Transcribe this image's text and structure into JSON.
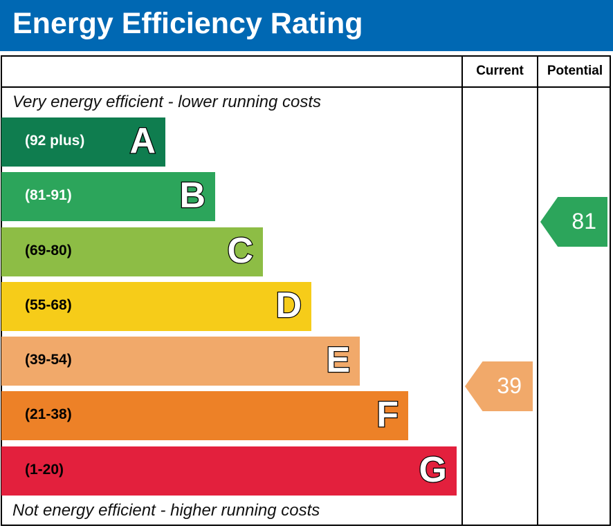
{
  "title": "Energy Efficiency Rating",
  "columns": {
    "current": "Current",
    "potential": "Potential"
  },
  "notes": {
    "top": "Very energy efficient - lower running costs",
    "bottom": "Not energy efficient - higher running costs"
  },
  "chart_data": {
    "type": "bar",
    "bands": [
      {
        "letter": "A",
        "range": "(92 plus)",
        "color": "#0f7d4f",
        "text_color": "#ffffff"
      },
      {
        "letter": "B",
        "range": "(81-91)",
        "color": "#2ca55b",
        "text_color": "#ffffff"
      },
      {
        "letter": "C",
        "range": "(69-80)",
        "color": "#8dbd45",
        "text_color": "#000000"
      },
      {
        "letter": "D",
        "range": "(55-68)",
        "color": "#f6cc19",
        "text_color": "#000000"
      },
      {
        "letter": "E",
        "range": "(39-54)",
        "color": "#f1a96a",
        "text_color": "#000000"
      },
      {
        "letter": "F",
        "range": "(21-38)",
        "color": "#ed8127",
        "text_color": "#000000"
      },
      {
        "letter": "G",
        "range": "(1-20)",
        "color": "#e3203d",
        "text_color": "#000000"
      }
    ],
    "current": {
      "value": "39",
      "band": "E",
      "color": "#f1a96a"
    },
    "potential": {
      "value": "81",
      "band": "B",
      "color": "#2ca55b"
    }
  }
}
